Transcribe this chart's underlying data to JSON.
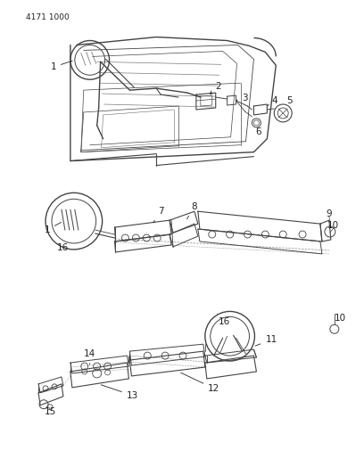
{
  "part_number": "4171 1000",
  "bg": "#ffffff",
  "lc": "#444444",
  "tc": "#222222",
  "fig_w": 4.08,
  "fig_h": 5.33,
  "dpi": 100
}
